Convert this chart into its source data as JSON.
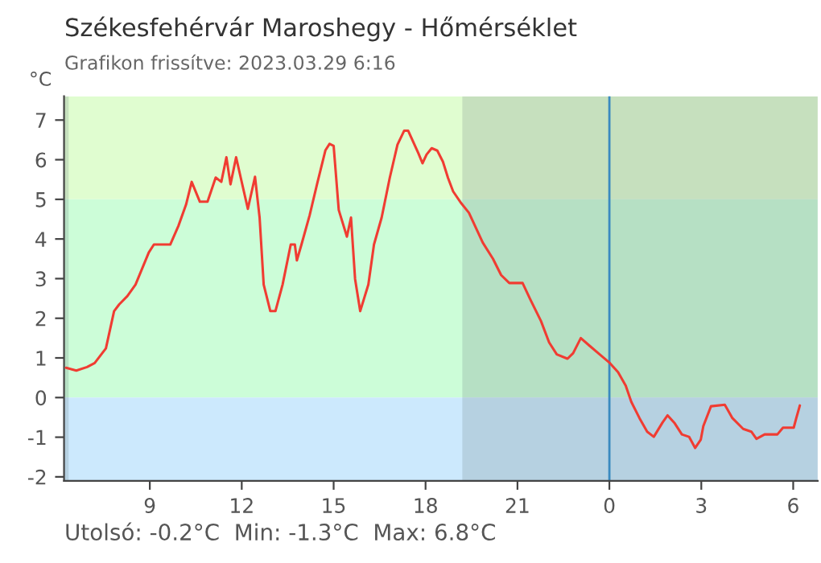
{
  "chart_data": {
    "type": "line",
    "title": "Székesfehérvár Maroshegy - Hőmérséklet",
    "subtitle": "Grafikon frissítve: 2023.03.29 6:16",
    "ylabel": "°C",
    "annotations": [
      "Utolsó: -0.2°C  Min: -1.3°C  Max: 6.8°C"
    ],
    "x": [
      "2023-03-28T06:16",
      "2023-03-28T06:36",
      "2023-03-28T06:57",
      "2023-03-28T07:12",
      "2023-03-28T07:34",
      "2023-03-28T07:50",
      "2023-03-28T08:00",
      "2023-03-28T08:16",
      "2023-03-28T08:32",
      "2023-03-28T08:58",
      "2023-03-28T09:08",
      "2023-03-28T09:40",
      "2023-03-28T09:56",
      "2023-03-28T10:11",
      "2023-03-28T10:22",
      "2023-03-28T10:38",
      "2023-03-28T10:53",
      "2023-03-28T11:09",
      "2023-03-28T11:20",
      "2023-03-28T11:30",
      "2023-03-28T11:38",
      "2023-03-28T11:49",
      "2023-03-28T11:58",
      "2023-03-28T12:12",
      "2023-03-28T12:26",
      "2023-03-28T12:35",
      "2023-03-28T12:43",
      "2023-03-28T12:56",
      "2023-03-28T13:06",
      "2023-03-28T13:20",
      "2023-03-28T13:36",
      "2023-03-28T13:44",
      "2023-03-28T13:48",
      "2023-03-28T13:57",
      "2023-03-28T14:13",
      "2023-03-28T14:28",
      "2023-03-28T14:44",
      "2023-03-28T14:52",
      "2023-03-28T15:00",
      "2023-03-28T15:10",
      "2023-03-28T15:26",
      "2023-03-28T15:34",
      "2023-03-28T15:42",
      "2023-03-28T15:52",
      "2023-03-28T16:08",
      "2023-03-28T16:19",
      "2023-03-28T16:34",
      "2023-03-28T16:50",
      "2023-03-28T17:05",
      "2023-03-28T17:18",
      "2023-03-28T17:26",
      "2023-03-28T17:46",
      "2023-03-28T17:54",
      "2023-03-28T18:02",
      "2023-03-28T18:12",
      "2023-03-28T18:23",
      "2023-03-28T18:34",
      "2023-03-28T18:44",
      "2023-03-28T18:54",
      "2023-03-28T19:10",
      "2023-03-28T19:25",
      "2023-03-28T19:52",
      "2023-03-28T20:12",
      "2023-03-28T20:28",
      "2023-03-28T20:44",
      "2023-03-28T21:10",
      "2023-03-28T21:25",
      "2023-03-28T21:46",
      "2023-03-28T22:02",
      "2023-03-28T22:17",
      "2023-03-28T22:38",
      "2023-03-28T22:49",
      "2023-03-28T23:04",
      "2023-03-28T23:20",
      "2023-03-28T23:41",
      "2023-03-29T00:01",
      "2023-03-29T00:17",
      "2023-03-29T00:32",
      "2023-03-29T00:43",
      "2023-03-29T00:59",
      "2023-03-29T01:14",
      "2023-03-29T01:27",
      "2023-03-29T01:44",
      "2023-03-29T01:54",
      "2023-03-29T02:08",
      "2023-03-29T02:22",
      "2023-03-29T02:36",
      "2023-03-29T02:48",
      "2023-03-29T02:59",
      "2023-03-29T03:04",
      "2023-03-29T03:19",
      "2023-03-29T03:46",
      "2023-03-29T04:01",
      "2023-03-29T04:22",
      "2023-03-29T04:38",
      "2023-03-29T04:48",
      "2023-03-29T05:04",
      "2023-03-29T05:29",
      "2023-03-29T05:40",
      "2023-03-29T06:01",
      "2023-03-29T06:06",
      "2023-03-29T06:13"
    ],
    "series": [
      {
        "color": "#f03c32",
        "values": [
          0.75,
          0.68,
          0.77,
          0.87,
          1.24,
          2.18,
          2.35,
          2.56,
          2.85,
          3.66,
          3.86,
          3.86,
          4.33,
          4.87,
          5.44,
          4.94,
          4.94,
          5.55,
          5.44,
          6.06,
          5.38,
          6.06,
          5.55,
          4.76,
          5.57,
          4.54,
          2.85,
          2.18,
          2.18,
          2.85,
          3.86,
          3.86,
          3.46,
          3.86,
          4.6,
          5.41,
          6.24,
          6.4,
          6.35,
          4.73,
          4.06,
          4.54,
          2.99,
          2.18,
          2.85,
          3.86,
          4.54,
          5.55,
          6.38,
          6.73,
          6.73,
          6.16,
          5.91,
          6.13,
          6.29,
          6.23,
          5.95,
          5.54,
          5.2,
          4.9,
          4.66,
          3.91,
          3.5,
          3.09,
          2.89,
          2.89,
          2.48,
          1.93,
          1.39,
          1.09,
          0.98,
          1.12,
          1.5,
          1.32,
          1.09,
          0.87,
          0.64,
          0.3,
          -0.11,
          -0.52,
          -0.86,
          -0.99,
          -0.63,
          -0.45,
          -0.65,
          -0.93,
          -0.99,
          -1.27,
          -1.06,
          -0.72,
          -0.22,
          -0.18,
          -0.52,
          -0.79,
          -0.86,
          -1.04,
          -0.93,
          -0.93,
          -0.76,
          -0.76,
          -0.52,
          -0.2
        ]
      }
    ],
    "xlim": [
      "2023-03-28T06:12",
      "2023-03-29T06:48"
    ],
    "ylim": [
      -2.1,
      7.6
    ],
    "xticks": [
      {
        "value": "2023-03-28T09:00",
        "label": "9"
      },
      {
        "value": "2023-03-28T12:00",
        "label": "12"
      },
      {
        "value": "2023-03-28T15:00",
        "label": "15"
      },
      {
        "value": "2023-03-28T18:00",
        "label": "18"
      },
      {
        "value": "2023-03-28T21:00",
        "label": "21"
      },
      {
        "value": "2023-03-29T00:00",
        "label": "0"
      },
      {
        "value": "2023-03-29T03:00",
        "label": "3"
      },
      {
        "value": "2023-03-29T06:00",
        "label": "6"
      }
    ],
    "yticks": [
      -2,
      -1,
      0,
      1,
      2,
      3,
      4,
      5,
      6,
      7
    ],
    "bands": [
      {
        "axis": "y",
        "from": 5,
        "to": 7.6,
        "color": "#e0fdd0"
      },
      {
        "axis": "y",
        "from": 0,
        "to": 5,
        "color": "#ccfdd8"
      },
      {
        "axis": "y",
        "from": -2.1,
        "to": 0,
        "color": "#cce9fd"
      },
      {
        "axis": "x",
        "from": "2023-03-28T06:12",
        "to": "2023-03-28T06:21",
        "color": "#6a7a80"
      },
      {
        "axis": "x",
        "from": "2023-03-28T19:12",
        "to": "2023-03-29T06:48",
        "color": "#6a7a80"
      }
    ],
    "ref_lines": [
      {
        "axis": "x",
        "value": "2023-03-29T00:00",
        "color": "#3a8ac0"
      }
    ],
    "grid": false,
    "marker": "none",
    "line_style": "solid"
  }
}
